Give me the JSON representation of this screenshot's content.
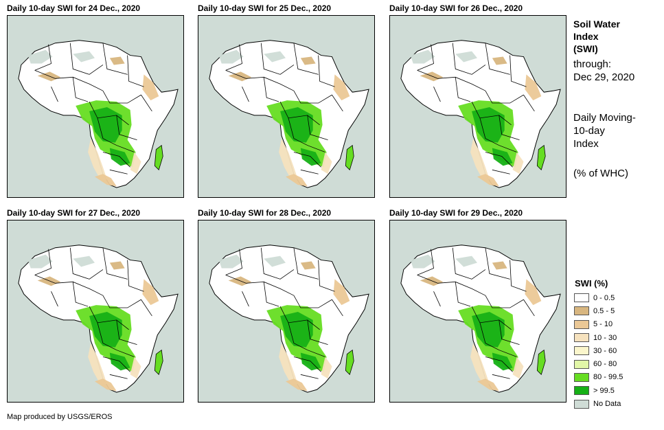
{
  "panels": [
    {
      "title": "Daily 10-day SWI for 24 Dec., 2020"
    },
    {
      "title": "Daily 10-day SWI for 25 Dec., 2020"
    },
    {
      "title": "Daily 10-day SWI for 26 Dec., 2020"
    },
    {
      "title": "Daily 10-day SWI for 27 Dec., 2020"
    },
    {
      "title": "Daily 10-day SWI for 28 Dec., 2020"
    },
    {
      "title": "Daily 10-day SWI for 29 Dec., 2020"
    }
  ],
  "sidebar": {
    "title_line1": "Soil Water",
    "title_line2": "Index",
    "title_line3": "(SWI)",
    "through_label": "through:",
    "through_date": "Dec 29, 2020",
    "desc_line1": "Daily Moving-",
    "desc_line2": "10-day",
    "desc_line3": "Index",
    "units": "(% of WHC)"
  },
  "legend": {
    "title": "SWI (%)",
    "items": [
      {
        "label": "0 - 0.5",
        "color": "#ffffff"
      },
      {
        "label": "0.5 - 5",
        "color": "#d8b680"
      },
      {
        "label": "5 - 10",
        "color": "#ebc896"
      },
      {
        "label": "10 - 30",
        "color": "#f6e2be"
      },
      {
        "label": "30 - 60",
        "color": "#fbf6cc"
      },
      {
        "label": "60 - 80",
        "color": "#e2f7a8"
      },
      {
        "label": "80 - 99.5",
        "color": "#66dd22"
      },
      {
        "label": "> 99.5",
        "color": "#16b016"
      },
      {
        "label": "No Data",
        "color": "#cfdcd6"
      }
    ]
  },
  "colors": {
    "ocean": "#cfdcd6",
    "land": "#ffffff"
  },
  "credit": "Map produced by USGS/EROS"
}
